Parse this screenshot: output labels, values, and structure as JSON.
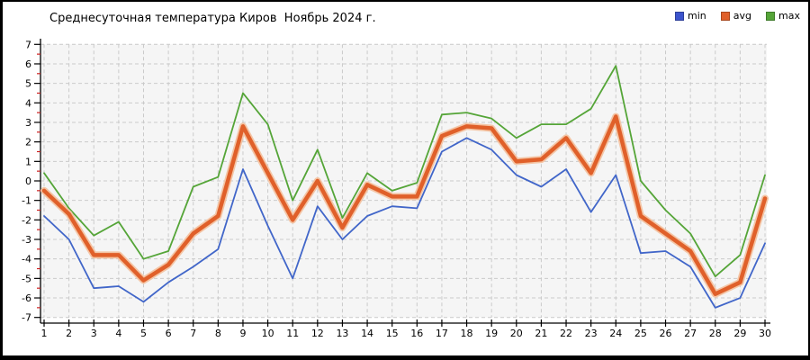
{
  "frame": {
    "title": "Среднесуточная температура Киров  Ноябрь 2024 г."
  },
  "legend": {
    "items": [
      {
        "label": "min",
        "color": "#3c54cd"
      },
      {
        "label": "avg",
        "color": "#e0602a"
      },
      {
        "label": "max",
        "color": "#55a538"
      }
    ]
  },
  "chart_data": {
    "type": "line",
    "title": "Среднесуточная температура Киров  Ноябрь 2024 г.",
    "xlabel": "",
    "ylabel": "",
    "x": [
      1,
      2,
      3,
      4,
      5,
      6,
      7,
      8,
      9,
      10,
      11,
      12,
      13,
      14,
      15,
      16,
      17,
      18,
      19,
      20,
      21,
      22,
      23,
      24,
      25,
      26,
      27,
      28,
      29,
      30
    ],
    "series": [
      {
        "name": "min",
        "color": "#4166c9",
        "width": 1.8,
        "values": [
          -1.8,
          -3.0,
          -5.5,
          -5.4,
          -6.2,
          -5.2,
          -4.4,
          -3.5,
          0.6,
          -2.3,
          -5.0,
          -1.3,
          -3.0,
          -1.8,
          -1.3,
          -1.4,
          1.5,
          2.2,
          1.6,
          0.3,
          -0.3,
          0.6,
          -1.6,
          0.3,
          -3.7,
          -3.6,
          -4.4,
          -6.5,
          -6.0,
          -3.2
        ]
      },
      {
        "name": "avg",
        "color": "#e0602a",
        "halo": "#f4c5a5",
        "width": 4.5,
        "values": [
          -0.5,
          -1.7,
          -3.8,
          -3.8,
          -5.1,
          -4.3,
          -2.7,
          -1.8,
          2.8,
          0.4,
          -2.0,
          0.0,
          -2.4,
          -0.2,
          -0.8,
          -0.8,
          2.3,
          2.8,
          2.7,
          1.0,
          1.1,
          2.2,
          0.4,
          3.3,
          -1.8,
          -2.7,
          -3.6,
          -5.8,
          -5.2,
          -0.9
        ]
      },
      {
        "name": "max",
        "color": "#55a538",
        "width": 1.8,
        "values": [
          0.4,
          -1.4,
          -2.8,
          -2.1,
          -4.0,
          -3.6,
          -0.3,
          0.2,
          4.5,
          2.9,
          -1.0,
          1.6,
          -1.9,
          0.4,
          -0.5,
          -0.1,
          3.4,
          3.5,
          3.2,
          2.2,
          2.9,
          2.9,
          3.7,
          5.9,
          0.0,
          -1.5,
          -2.7,
          -4.9,
          -3.8,
          0.3
        ]
      }
    ],
    "ylim": [
      -7,
      7
    ],
    "xlim": [
      1,
      30
    ],
    "ytick_step": 1,
    "yminor_step": 0.5,
    "grid": true,
    "grid_style": "dashed",
    "legend_position": "top-right",
    "colors": {
      "plot_bg": "#f5f5f5",
      "grid": "#cacaca",
      "axis": "#000000",
      "minor_tick": "#cc2222",
      "tick_label": "#000000"
    }
  }
}
